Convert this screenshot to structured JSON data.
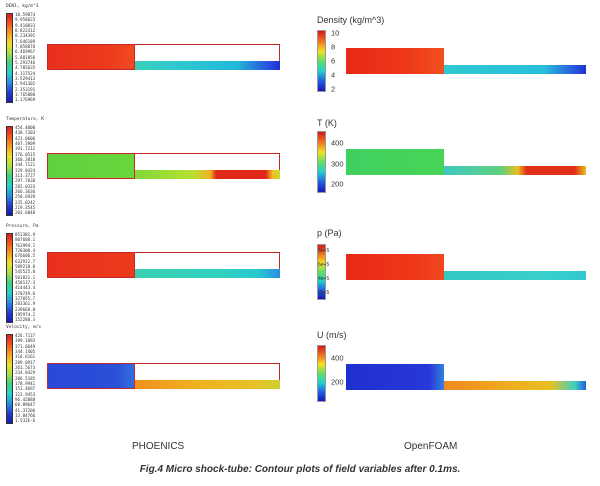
{
  "phoenics": {
    "panels": [
      {
        "title": "DEN1, kg/m^3",
        "ticks": [
          "10.59874",
          "9.958623",
          "9.410833",
          "8.822412",
          "8.234391",
          "7.646189",
          "7.058078",
          "6.469967",
          "5.881856",
          "5.293746",
          "4.705635",
          "4.117524",
          "3.529413",
          "2.941302",
          "2.353191",
          "1.765080",
          "1.176969"
        ]
      },
      {
        "title": "Temperature, K",
        "ticks": [
          "454.4000",
          "438.7303",
          "423.0606",
          "407.3909",
          "391.7212",
          "376.0515",
          "360.3818",
          "344.7121",
          "329.0424",
          "313.3727",
          "297.7030",
          "282.0333",
          "266.3636",
          "250.6939",
          "235.0242",
          "219.3545",
          "203.6848"
        ]
      },
      {
        "title": "Pressure, Pa",
        "ticks": [
          "851381.9",
          "807688.1",
          "763994.2",
          "720300.4",
          "676606.5",
          "632912.7",
          "589218.8",
          "545525.0",
          "501831.1",
          "458137.3",
          "414443.4",
          "370749.6",
          "327055.7",
          "283361.9",
          "239668.0",
          "195974.2",
          "152280.3"
        ]
      },
      {
        "title": "Velocity, m/s",
        "ticks": [
          "426.7137",
          "399.1893",
          "371.6649",
          "344.1405",
          "316.6161",
          "289.0917",
          "261.5673",
          "234.0429",
          "206.5185",
          "178.9941",
          "151.4697",
          "123.9453",
          "96.42088",
          "68.89647",
          "41.37206",
          "13.84766",
          "1.532E-6"
        ]
      }
    ]
  },
  "openfoam": {
    "panels": [
      {
        "label": "Density (kg/m^3)",
        "ticks": [
          "10",
          "8",
          "6",
          "4",
          "2"
        ]
      },
      {
        "label": "T (K)",
        "ticks": [
          "400",
          "300",
          "200"
        ]
      },
      {
        "label": "p (Pa)",
        "ticks": [
          "8e+5",
          "6e+5",
          "4e+5",
          "2e+5"
        ]
      },
      {
        "label": "U (m/s)",
        "ticks": [
          "400",
          "200"
        ]
      }
    ]
  },
  "footer": {
    "left": "PHOENICS",
    "right": "OpenFOAM",
    "caption": "Fig.4 Micro shock-tube: Contour plots of field variables after 0.1ms."
  }
}
